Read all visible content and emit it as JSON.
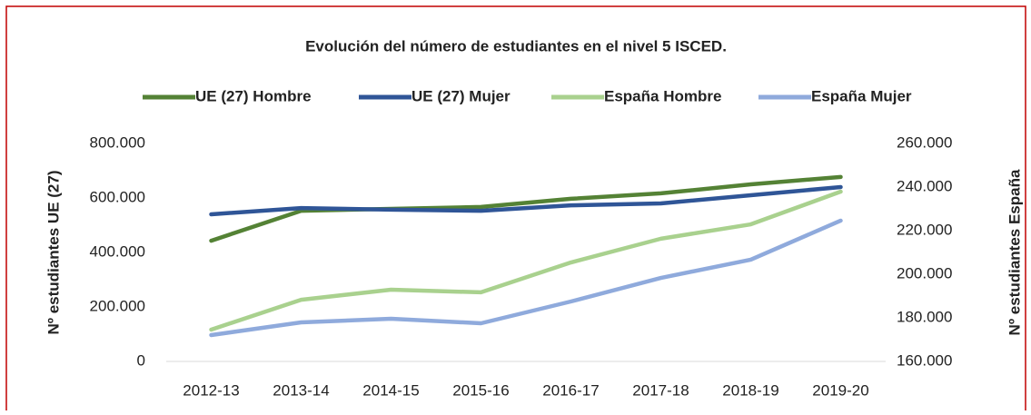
{
  "chart_data": {
    "type": "line",
    "title": "Evolución del número de estudiantes en el nivel 5 ISCED.",
    "y_label": "Nº estudiantes UE (27)",
    "y2_label": "Nº estudiantes España",
    "categories": [
      "2012-13",
      "2013-14",
      "2014-15",
      "2015-16",
      "2016-17",
      "2017-18",
      "2018-19",
      "2019-20"
    ],
    "series": [
      {
        "name": "UE (27) Hombre",
        "color": "#548235",
        "values": [
          443000,
          553000,
          560000,
          567000,
          597000,
          617000,
          650000,
          677000
        ]
      },
      {
        "name": "UE (27) Mujer",
        "color": "#2f5597",
        "values": [
          540000,
          563000,
          557000,
          553000,
          573000,
          580000,
          610000,
          640000
        ]
      },
      {
        "name": "España Hombre",
        "color": "#a9d18e",
        "axis": "y2",
        "values": [
          174600,
          188300,
          192900,
          191700,
          205400,
          216300,
          222900,
          237900
        ]
      },
      {
        "name": "España Mujer",
        "color": "#8faadc",
        "axis": "y2",
        "values": [
          172100,
          177900,
          179600,
          177500,
          187500,
          198300,
          206700,
          224600
        ]
      }
    ],
    "ylim": [
      0,
      800000
    ],
    "yticks": [
      0,
      {
        "value": 200000,
        "label": "200.000"
      },
      {
        "value": 400000,
        "label": "400.000"
      },
      {
        "value": 600000,
        "label": "600.000"
      },
      {
        "value": 800000,
        "label": "800.000"
      }
    ],
    "y2lim": [
      160000,
      260000
    ],
    "y2ticks": [
      {
        "value": 160000,
        "label": "160.000"
      },
      {
        "value": 180000,
        "label": "180.000"
      },
      {
        "value": 200000,
        "label": "200.000"
      },
      {
        "value": 220000,
        "label": "220.000"
      },
      {
        "value": 240000,
        "label": "240.000"
      },
      {
        "value": 260000,
        "label": "260.000"
      }
    ],
    "grid": false,
    "legend": "top"
  }
}
